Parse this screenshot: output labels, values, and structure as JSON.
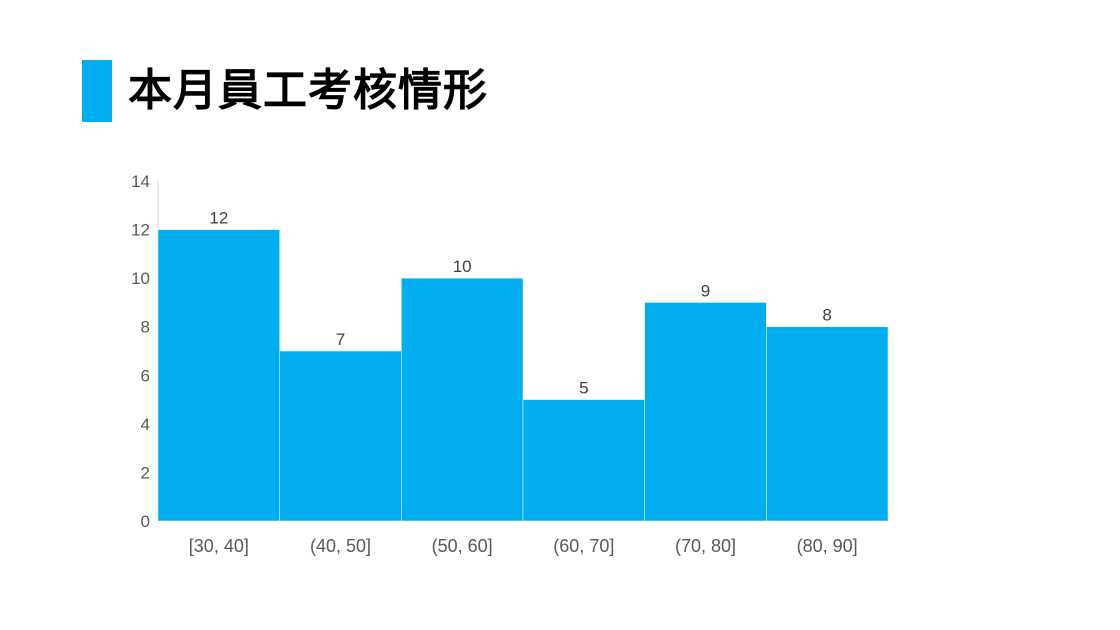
{
  "header": {
    "title": "本月員工考核情形",
    "accent_color": "#00AEEF"
  },
  "chart_data": {
    "type": "bar",
    "categories": [
      "[30, 40]",
      "(40, 50]",
      "(50, 60]",
      "(60, 70]",
      "(70, 80]",
      "(80, 90]"
    ],
    "values": [
      12,
      7,
      10,
      5,
      9,
      8
    ],
    "ylim": [
      0,
      14
    ],
    "yticks": [
      0,
      2,
      4,
      6,
      8,
      10,
      12,
      14
    ],
    "bar_color": "#00AEEF",
    "grid": false,
    "legend": "none"
  }
}
